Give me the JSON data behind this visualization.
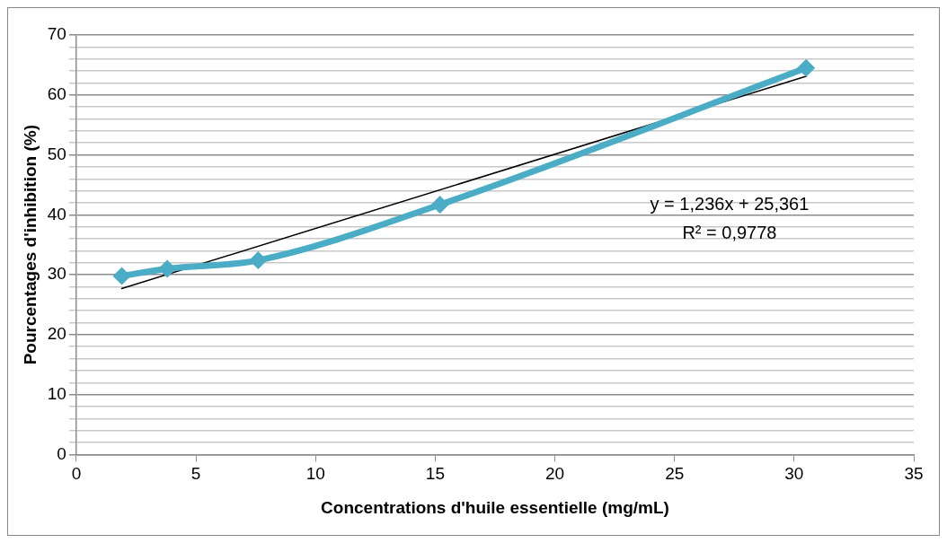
{
  "chart_data": {
    "type": "line",
    "xlabel": "Concentrations d'huile essentielle (mg/mL)",
    "ylabel": "Pourcentages d'inhibition (%)",
    "series": [
      {
        "color": "#4bacc6",
        "x": [
          1.9,
          3.8,
          7.6,
          15.2,
          30.5
        ],
        "values": [
          29.8,
          31.0,
          32.4,
          41.7,
          64.5
        ],
        "marker": "diamond"
      },
      {
        "color": "#000000",
        "x": [
          1.9,
          30.5
        ],
        "values": [
          27.7,
          63.1
        ],
        "marker": "none"
      }
    ],
    "xlim": [
      0,
      35
    ],
    "xticks": [
      0,
      5,
      10,
      15,
      20,
      25,
      30,
      35
    ],
    "ylim": [
      0,
      70
    ],
    "yticks": [
      0,
      {
        "value": 2,
        "label": null
      },
      {
        "value": 4,
        "label": null
      },
      {
        "value": 6,
        "label": null
      },
      {
        "value": 8,
        "label": null
      },
      10,
      {
        "value": 12,
        "label": null
      },
      {
        "value": 14,
        "label": null
      },
      {
        "value": 16,
        "label": null
      },
      {
        "value": 18,
        "label": null
      },
      20,
      {
        "value": 22,
        "label": null
      },
      {
        "value": 24,
        "label": null
      },
      {
        "value": 26,
        "label": null
      },
      {
        "value": 28,
        "label": null
      },
      30,
      {
        "value": 32,
        "label": null
      },
      {
        "value": 34,
        "label": null
      },
      {
        "value": 36,
        "label": null
      },
      {
        "value": 38,
        "label": null
      },
      40,
      {
        "value": 42,
        "label": null
      },
      {
        "value": 44,
        "label": null
      },
      {
        "value": 46,
        "label": null
      },
      {
        "value": 48,
        "label": null
      },
      50,
      {
        "value": 52,
        "label": null
      },
      {
        "value": 54,
        "label": null
      },
      {
        "value": 56,
        "label": null
      },
      {
        "value": 58,
        "label": null
      },
      60,
      {
        "value": 62,
        "label": null
      },
      {
        "value": 64,
        "label": null
      },
      {
        "value": 66,
        "label": null
      },
      {
        "value": 68,
        "label": null
      },
      70
    ],
    "grid": "y",
    "legend": false,
    "annotations": [
      "y = 1,236x + 25,361",
      "R² = 0,9778"
    ]
  }
}
